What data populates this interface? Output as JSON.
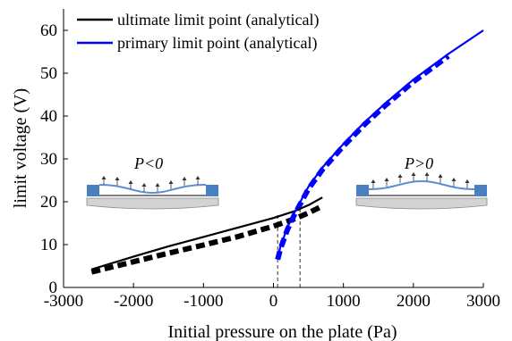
{
  "chart_data": {
    "type": "line",
    "xlabel": "Initial pressure on the plate (Pa)",
    "ylabel": "limit voltage (V)",
    "xlim": [
      -3000,
      3000
    ],
    "ylim": [
      0,
      65
    ],
    "xticks": [
      -3000,
      -2000,
      -1000,
      0,
      1000,
      2000,
      3000
    ],
    "yticks": [
      0,
      10,
      20,
      30,
      40,
      50,
      60
    ],
    "xtick_labels": [
      "-3000",
      "-2000",
      "-1000",
      "0",
      "1000",
      "2000",
      "3000"
    ],
    "ytick_labels": [
      "0",
      "10",
      "20",
      "30",
      "40",
      "50",
      "60"
    ],
    "grid": false,
    "legend_position": "top-left",
    "series": [
      {
        "name": "ultimate limit point (analytical)",
        "style": "solid",
        "color": "#000000",
        "x": [
          -2600,
          -2000,
          -1500,
          -1000,
          -500,
          0,
          300,
          500,
          700
        ],
        "y": [
          4.2,
          7.2,
          9.6,
          11.8,
          14.0,
          16.2,
          17.8,
          19.2,
          21.0
        ]
      },
      {
        "name": "primary limit point (analytical)",
        "style": "solid",
        "color": "#0000ff",
        "x": [
          60,
          100,
          200,
          300,
          400,
          500,
          700,
          1000,
          1300,
          1600,
          2000,
          2500,
          3000
        ],
        "y": [
          7.0,
          9.5,
          14.0,
          17.5,
          20.5,
          23.5,
          28.0,
          33.5,
          38.5,
          43.0,
          48.5,
          54.5,
          60.0
        ]
      },
      {
        "style": "dashed",
        "color": "#000000",
        "x": [
          -2600,
          -2000,
          -1500,
          -1000,
          -500,
          0,
          300,
          500,
          700
        ],
        "y": [
          3.6,
          6.0,
          8.0,
          9.9,
          11.9,
          14.3,
          16.0,
          17.4,
          19.0
        ]
      },
      {
        "style": "dashed",
        "color": "#0000ff",
        "x": [
          60,
          100,
          200,
          300,
          400,
          500,
          700,
          1000,
          1300,
          1600,
          2000,
          2500
        ],
        "y": [
          6.5,
          9.0,
          13.5,
          17.0,
          20.0,
          23.0,
          27.5,
          33.0,
          38.0,
          42.5,
          48.0,
          54.0
        ]
      }
    ],
    "reference_lines": [
      {
        "x": 60,
        "y_top": 17.0
      },
      {
        "x": 380,
        "y_top": 18.5
      }
    ],
    "annotations": [
      {
        "text": "P<0"
      },
      {
        "text": "P>0"
      }
    ]
  },
  "colors": {
    "plate_fill": "#d3d3d3",
    "anchor_fill": "#4a7fc0",
    "membrane": "#5b8fd1"
  }
}
